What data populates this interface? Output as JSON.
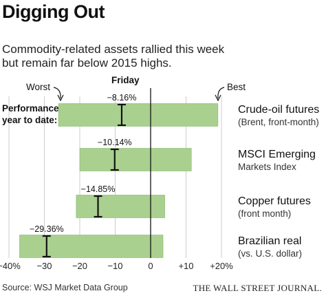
{
  "header": {
    "title": "Digging Out",
    "subtitle": "Commodity-related assets rallied this week but remain far below 2015 highs."
  },
  "footer": {
    "source": "Source: WSJ Market Data Group",
    "publisher": "THE WALL STREET JOURNAL."
  },
  "colors": {
    "bar_fill": "#a9d08e",
    "bar_stroke": "#8ab86e",
    "marker": "#111111",
    "grid": "#cccccc",
    "zero_line": "#111111"
  },
  "chart_data": {
    "type": "bar",
    "orientation": "horizontal",
    "xlim": [
      -40,
      20
    ],
    "x_ticks": [
      -40,
      -30,
      -20,
      -10,
      0,
      10,
      20
    ],
    "x_tick_labels": [
      "−40%",
      "−30",
      "−20",
      "−10",
      "0",
      "+10",
      "+20%"
    ],
    "grid": true,
    "legend": {
      "worst": "Worst",
      "best": "Best",
      "friday": "Friday",
      "performance": "Performance",
      "ytd": "year to date:"
    },
    "categories": [
      {
        "name": "Crude-oil futures",
        "sub": "(Brent, front-month)",
        "worst": -26,
        "best": 19,
        "ytd": -8.16,
        "ytd_label": "−8.16%"
      },
      {
        "name": "MSCI  Emerging",
        "sub": "Markets Index",
        "worst": -20,
        "best": 11.5,
        "ytd": -10.14,
        "ytd_label": "−10.14%"
      },
      {
        "name": "Copper futures",
        "sub": "(front month)",
        "worst": -21,
        "best": 4,
        "ytd": -14.85,
        "ytd_label": "−14.85%"
      },
      {
        "name": "Brazilian real",
        "sub": "(vs. U.S. dollar)",
        "worst": -37,
        "best": 3.5,
        "ytd": -29.36,
        "ytd_label": "−29.36%"
      }
    ]
  }
}
